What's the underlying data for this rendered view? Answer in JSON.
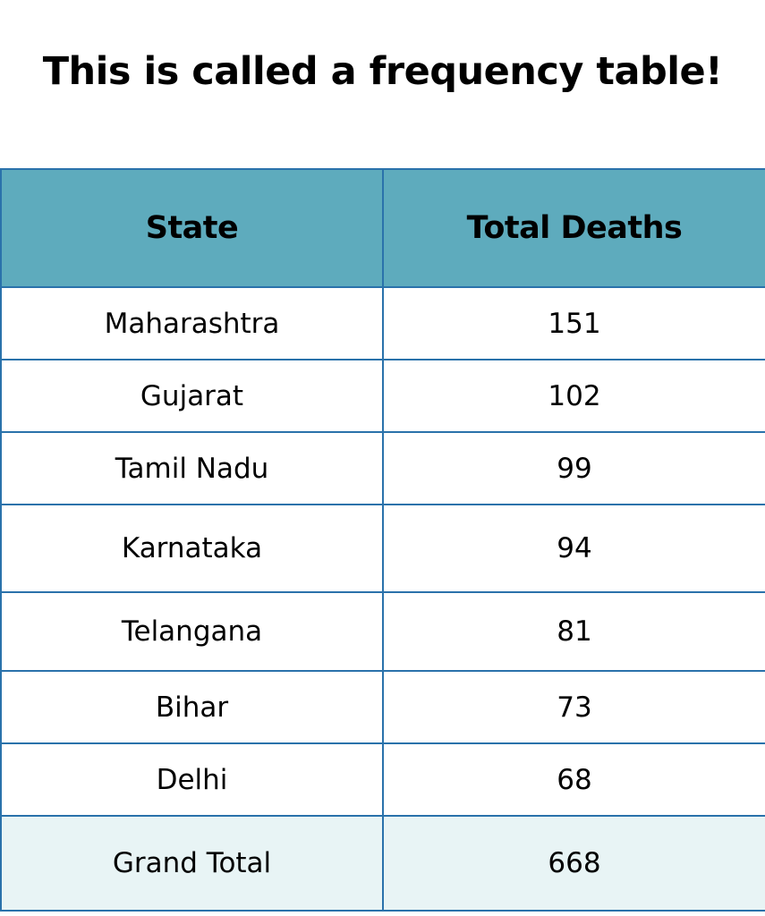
{
  "title": "This is called a frequency table!",
  "table": {
    "headers": [
      "State",
      "Total Deaths"
    ],
    "rows": [
      {
        "state": "Maharashtra",
        "deaths": "151"
      },
      {
        "state": "Gujarat",
        "deaths": "102"
      },
      {
        "state": "Tamil Nadu",
        "deaths": "99"
      },
      {
        "state": "Karnataka",
        "deaths": "94"
      },
      {
        "state": "Telangana",
        "deaths": "81"
      },
      {
        "state": "Bihar",
        "deaths": "73"
      },
      {
        "state": "Delhi",
        "deaths": "68"
      }
    ],
    "total": {
      "label": "Grand Total",
      "value": "668"
    }
  },
  "colors": {
    "header_bg": "#5eabbd",
    "border": "#2a72ab",
    "total_row_bg": "#e8f4f5"
  }
}
